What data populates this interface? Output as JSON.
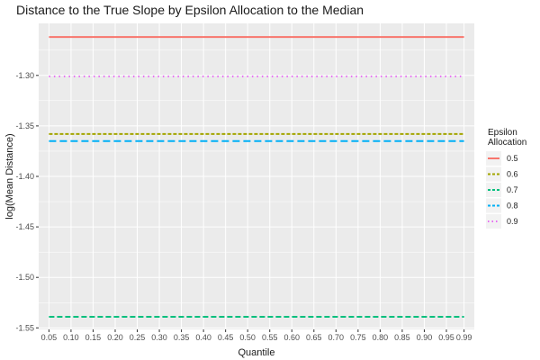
{
  "chart_data": {
    "type": "line",
    "title": "Distance to the True Slope by Epsilon Allocation to the Median",
    "xlabel": "Quantile",
    "ylabel": "log(Mean Distance)",
    "x": [
      0.05,
      0.1,
      0.15,
      0.2,
      0.25,
      0.3,
      0.35,
      0.4,
      0.45,
      0.5,
      0.55,
      0.6,
      0.65,
      0.7,
      0.75,
      0.8,
      0.85,
      0.9,
      0.95,
      0.99
    ],
    "x_tick_labels": [
      "0.05",
      "0.10",
      "0.15",
      "0.20",
      "0.25",
      "0.30",
      "0.35",
      "0.40",
      "0.45",
      "0.50",
      "0.55",
      "0.60",
      "0.65",
      "0.70",
      "0.75",
      "0.80",
      "0.85",
      "0.90",
      "0.95",
      "0.99"
    ],
    "xlim": [
      0.0268,
      1.0132
    ],
    "ylim": [
      -1.5515,
      -1.2485
    ],
    "y_ticks": [
      -1.3,
      -1.35,
      -1.4,
      -1.45,
      -1.5,
      -1.55
    ],
    "y_tick_labels": [
      "-1.30",
      "-1.35",
      "-1.40",
      "-1.45",
      "-1.50",
      "-1.55"
    ],
    "grid": true,
    "legend": {
      "title_lines": [
        "Epsilon",
        "Allocation"
      ],
      "placement": "right"
    },
    "series": [
      {
        "name": "0.5",
        "color": "#F8766D",
        "linetype": "solid",
        "values": [
          -1.262,
          -1.262,
          -1.262,
          -1.262,
          -1.262,
          -1.262,
          -1.262,
          -1.262,
          -1.262,
          -1.262,
          -1.262,
          -1.262,
          -1.262,
          -1.262,
          -1.262,
          -1.262,
          -1.262,
          -1.262,
          -1.262,
          -1.262
        ]
      },
      {
        "name": "0.6",
        "color": "#A3A500",
        "linetype": "dashed-short",
        "values": [
          -1.358,
          -1.358,
          -1.358,
          -1.358,
          -1.358,
          -1.358,
          -1.358,
          -1.358,
          -1.358,
          -1.358,
          -1.358,
          -1.358,
          -1.358,
          -1.358,
          -1.358,
          -1.358,
          -1.358,
          -1.358,
          -1.358,
          -1.358
        ]
      },
      {
        "name": "0.7",
        "color": "#00BF7D",
        "linetype": "dashed",
        "values": [
          -1.539,
          -1.539,
          -1.539,
          -1.539,
          -1.539,
          -1.539,
          -1.539,
          -1.539,
          -1.539,
          -1.539,
          -1.539,
          -1.539,
          -1.539,
          -1.539,
          -1.539,
          -1.539,
          -1.539,
          -1.539,
          -1.539,
          -1.539
        ]
      },
      {
        "name": "0.8",
        "color": "#00B0F6",
        "linetype": "longdash",
        "values": [
          -1.365,
          -1.365,
          -1.365,
          -1.365,
          -1.365,
          -1.365,
          -1.365,
          -1.365,
          -1.365,
          -1.365,
          -1.365,
          -1.365,
          -1.365,
          -1.365,
          -1.365,
          -1.365,
          -1.365,
          -1.365,
          -1.365,
          -1.365
        ]
      },
      {
        "name": "0.9",
        "color": "#E76BF3",
        "linetype": "dotted",
        "values": [
          -1.301,
          -1.301,
          -1.301,
          -1.301,
          -1.301,
          -1.301,
          -1.301,
          -1.301,
          -1.301,
          -1.301,
          -1.301,
          -1.301,
          -1.301,
          -1.301,
          -1.301,
          -1.301,
          -1.301,
          -1.301,
          -1.301,
          -1.301
        ]
      }
    ]
  }
}
